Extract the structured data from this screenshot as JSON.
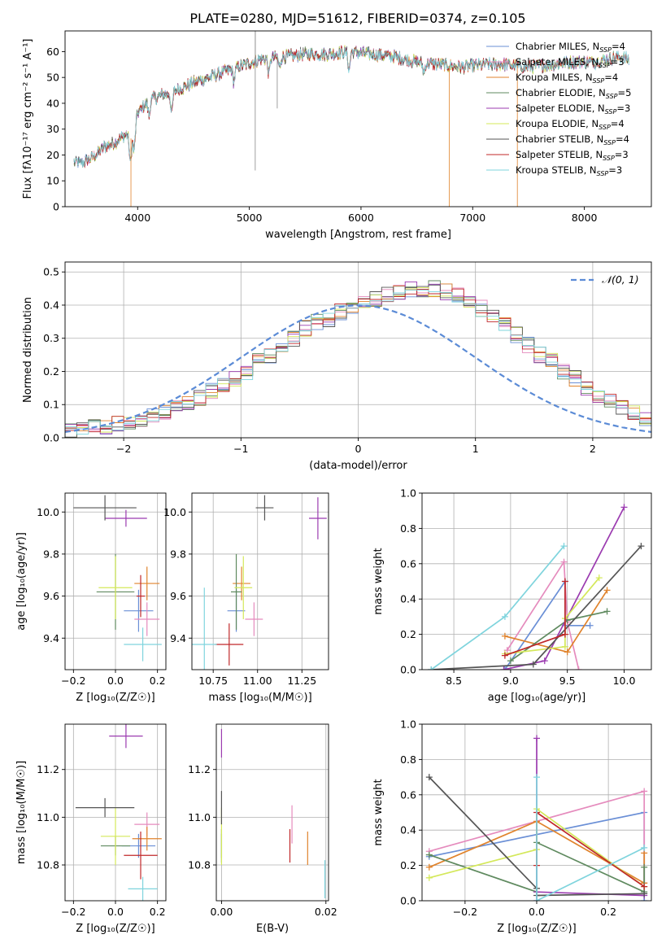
{
  "figure_title": "PLATE=0280, MJD=51612, FIBERID=0374, z=0.105",
  "colors": {
    "Chabrier MILES": "#6a8fd6",
    "Salpeter MILES": "#e58bbd",
    "Kroupa MILES": "#e0832c",
    "Chabrier ELODIE": "#5f8a5f",
    "Salpeter ELODIE": "#9b3bb0",
    "Kroupa ELODIE": "#d4e85a",
    "Chabrier STELIB": "#555555",
    "Salpeter STELIB": "#c0282a",
    "Kroupa STELIB": "#7fd4dd",
    "gauss": "#5b8bd6"
  },
  "chart_data": [
    {
      "id": "spectrum",
      "type": "line",
      "title": "PLATE=0280, MJD=51612, FIBERID=0374, z=0.105",
      "xlabel": "wavelength [Angstrom, rest frame]",
      "ylabel": "Flux [fλ10⁻¹⁷ erg cm⁻² s⁻¹ A⁻¹]",
      "xlim": [
        3350,
        8600
      ],
      "ylim": [
        0,
        68
      ],
      "xticks": [
        4000,
        5000,
        6000,
        7000,
        8000
      ],
      "yticks": [
        0,
        10,
        20,
        30,
        40,
        50,
        60
      ],
      "grid": false,
      "legend_position": "top-right",
      "legend": [
        "Chabrier MILES, N_SSP=4",
        "Salpeter MILES, N_SSP=3",
        "Kroupa MILES, N_SSP=4",
        "Chabrier ELODIE, N_SSP=5",
        "Salpeter ELODIE, N_SSP=3",
        "Kroupa ELODIE, N_SSP=4",
        "Chabrier STELIB, N_SSP=4",
        "Salpeter STELIB, N_SSP=3",
        "Kroupa STELIB, N_SSP=3"
      ],
      "legend_text": [
        [
          "Chabrier MILES, N",
          "SSP",
          "=4"
        ],
        [
          "Salpeter MILES, N",
          "SSP",
          "=3"
        ],
        [
          "Kroupa MILES, N",
          "SSP",
          "=4"
        ],
        [
          "Chabrier ELODIE, N",
          "SSP",
          "=5"
        ],
        [
          "Salpeter ELODIE, N",
          "SSP",
          "=3"
        ],
        [
          "Kroupa ELODIE, N",
          "SSP",
          "=4"
        ],
        [
          "Chabrier STELIB, N",
          "SSP",
          "=4"
        ],
        [
          "Salpeter STELIB, N",
          "SSP",
          "=3"
        ],
        [
          "Kroupa STELIB, N",
          "SSP",
          "=3"
        ]
      ],
      "continuum": {
        "x": [
          3430,
          3500,
          3600,
          3700,
          3800,
          3900,
          3950,
          4000,
          4100,
          4200,
          4300,
          4400,
          4500,
          4700,
          4900,
          5100,
          5300,
          5500,
          5700,
          5900,
          6100,
          6300,
          6500,
          6700,
          6900,
          7100,
          7300,
          7500,
          7700,
          7900,
          8100,
          8300,
          8400
        ],
        "y": [
          17,
          17,
          19,
          23,
          25,
          28,
          26,
          36,
          41,
          43,
          44,
          46,
          48,
          51,
          54,
          57,
          58,
          59,
          59,
          60,
          59,
          58,
          56,
          55,
          54,
          55,
          55,
          54,
          55,
          56,
          56,
          58,
          57
        ]
      },
      "x_start_by_series": [
        3430,
        3430,
        3500,
        3430,
        3430,
        3430,
        3430,
        3500,
        3430
      ],
      "absorption_lines": [
        {
          "x": 3934,
          "depth": 10
        },
        {
          "x": 3969,
          "depth": 8
        },
        {
          "x": 4102,
          "depth": 6
        },
        {
          "x": 4305,
          "depth": 8
        },
        {
          "x": 4861,
          "depth": 5
        },
        {
          "x": 5175,
          "depth": 6
        },
        {
          "x": 5270,
          "depth": 4
        },
        {
          "x": 5893,
          "depth": 7
        },
        {
          "x": 6563,
          "depth": 4
        }
      ],
      "glitches": [
        {
          "x": 5053,
          "value": 14
        },
        {
          "x": 5250,
          "value": 38
        },
        {
          "x": 6790,
          "value": 0
        },
        {
          "x": 7400,
          "value": 0
        },
        {
          "x": 3940,
          "value": 0
        }
      ]
    },
    {
      "id": "residuals",
      "type": "line",
      "xlabel": "(data-model)/error",
      "ylabel": "Normed distribution",
      "xlim": [
        -2.5,
        2.5
      ],
      "ylim": [
        0,
        0.53
      ],
      "xticks": [
        -2,
        -1,
        0,
        1,
        2
      ],
      "yticks": [
        0.0,
        0.1,
        0.2,
        0.3,
        0.4,
        0.5
      ],
      "grid": true,
      "legend_position": "top-right",
      "legend": [
        "𝒩(0, 1)"
      ],
      "bin_width": 0.1,
      "bins_start": -2.5,
      "base_histogram": [
        0.02,
        0.025,
        0.03,
        0.035,
        0.04,
        0.05,
        0.055,
        0.065,
        0.075,
        0.09,
        0.1,
        0.12,
        0.14,
        0.16,
        0.18,
        0.2,
        0.23,
        0.25,
        0.28,
        0.3,
        0.33,
        0.35,
        0.36,
        0.38,
        0.4,
        0.41,
        0.42,
        0.43,
        0.44,
        0.45,
        0.45,
        0.45,
        0.44,
        0.43,
        0.41,
        0.39,
        0.36,
        0.34,
        0.31,
        0.28,
        0.25,
        0.23,
        0.2,
        0.18,
        0.15,
        0.13,
        0.11,
        0.09,
        0.075,
        0.06
      ],
      "gaussian": {
        "mu": 0,
        "sigma": 1
      }
    },
    {
      "id": "Z_age",
      "type": "scatter",
      "xlabel": "Z [log₁₀(Z/Z☉)]",
      "ylabel": "age  [log₁₀(age/yr)]",
      "xlim": [
        -0.24,
        0.24
      ],
      "ylim": [
        9.25,
        10.09
      ],
      "xticks": [
        -0.2,
        0.0,
        0.2
      ],
      "yticks": [
        9.4,
        9.6,
        9.8,
        10.0
      ],
      "grid": true,
      "points": [
        {
          "series": "Chabrier MILES",
          "x": 0.11,
          "y": 9.53,
          "xerr": 0.07,
          "yerr": 0.1
        },
        {
          "series": "Salpeter MILES",
          "x": 0.15,
          "y": 9.49,
          "xerr": 0.06,
          "yerr": 0.08
        },
        {
          "series": "Kroupa MILES",
          "x": 0.15,
          "y": 9.66,
          "xerr": 0.06,
          "yerr": 0.08
        },
        {
          "series": "Chabrier ELODIE",
          "x": 0.0,
          "y": 9.62,
          "xerr": 0.09,
          "yerr": 0.18
        },
        {
          "series": "Salpeter ELODIE",
          "x": 0.05,
          "y": 9.97,
          "xerr": 0.1,
          "yerr": 0.04
        },
        {
          "series": "Kroupa ELODIE",
          "x": 0.0,
          "y": 9.64,
          "xerr": 0.08,
          "yerr": 0.15
        },
        {
          "series": "Chabrier STELIB",
          "x": -0.05,
          "y": 10.02,
          "xerr": 0.15,
          "yerr": 0.06
        },
        {
          "series": "Salpeter STELIB",
          "x": 0.12,
          "y": 9.6,
          "xerr": 0.02,
          "yerr": 0.1
        },
        {
          "series": "Kroupa STELIB",
          "x": 0.13,
          "y": 9.37,
          "xerr": 0.09,
          "yerr": 0.08
        }
      ]
    },
    {
      "id": "mass_age",
      "type": "scatter",
      "xlabel": "mass [log₁₀(M/M☉)]",
      "ylabel": "",
      "xlim": [
        10.63,
        11.4
      ],
      "ylim": [
        9.25,
        10.09
      ],
      "xticks": [
        10.75,
        11.0,
        11.25
      ],
      "yticks": [
        9.4,
        9.6,
        9.8,
        10.0
      ],
      "grid": true,
      "points": [
        {
          "series": "Chabrier MILES",
          "x": 10.88,
          "y": 9.53,
          "xerr": 0.05,
          "yerr": 0.1
        },
        {
          "series": "Salpeter MILES",
          "x": 10.98,
          "y": 9.49,
          "xerr": 0.05,
          "yerr": 0.08
        },
        {
          "series": "Kroupa MILES",
          "x": 10.91,
          "y": 9.66,
          "xerr": 0.05,
          "yerr": 0.08
        },
        {
          "series": "Chabrier ELODIE",
          "x": 10.88,
          "y": 9.62,
          "xerr": 0.03,
          "yerr": 0.18
        },
        {
          "series": "Salpeter ELODIE",
          "x": 11.34,
          "y": 9.97,
          "xerr": 0.05,
          "yerr": 0.1
        },
        {
          "series": "Kroupa ELODIE",
          "x": 10.92,
          "y": 9.64,
          "xerr": 0.05,
          "yerr": 0.15
        },
        {
          "series": "Chabrier STELIB",
          "x": 11.04,
          "y": 10.02,
          "xerr": 0.05,
          "yerr": 0.06
        },
        {
          "series": "Salpeter STELIB",
          "x": 10.84,
          "y": 9.37,
          "xerr": 0.08,
          "yerr": 0.1
        },
        {
          "series": "Kroupa STELIB",
          "x": 10.7,
          "y": 9.37,
          "xerr": 0.07,
          "yerr": 0.27
        }
      ]
    },
    {
      "id": "age_weight",
      "type": "line",
      "xlabel": "age  [log₁₀(age/yr)]",
      "ylabel": "mass weight",
      "xlim": [
        8.22,
        10.24
      ],
      "ylim": [
        0,
        1.0
      ],
      "xticks": [
        8.5,
        9.0,
        9.5,
        10.0
      ],
      "yticks": [
        0.0,
        0.2,
        0.4,
        0.6,
        0.8,
        1.0
      ],
      "grid": true,
      "series": [
        {
          "name": "Chabrier MILES",
          "x": [
            8.95,
            9.48,
            9.48,
            9.7
          ],
          "y": [
            0.0,
            0.5,
            0.25,
            0.25
          ]
        },
        {
          "name": "Salpeter MILES",
          "x": [
            8.97,
            9.47,
            9.5,
            9.6
          ],
          "y": [
            0.11,
            0.61,
            0.27,
            0.0
          ]
        },
        {
          "name": "Kroupa MILES",
          "x": [
            8.95,
            9.5,
            9.85
          ],
          "y": [
            0.19,
            0.1,
            0.45
          ]
        },
        {
          "name": "Chabrier ELODIE",
          "x": [
            9.0,
            9.5,
            9.85
          ],
          "y": [
            0.05,
            0.28,
            0.33
          ]
        },
        {
          "name": "Salpeter ELODIE",
          "x": [
            8.94,
            9.3,
            10.0
          ],
          "y": [
            0.0,
            0.05,
            0.92
          ]
        },
        {
          "name": "Kroupa ELODIE",
          "x": [
            8.95,
            9.48,
            9.48,
            9.78
          ],
          "y": [
            0.09,
            0.13,
            0.29,
            0.52
          ]
        },
        {
          "name": "Chabrier STELIB",
          "x": [
            8.3,
            9.2,
            10.15
          ],
          "y": [
            0.0,
            0.03,
            0.7
          ]
        },
        {
          "name": "Salpeter STELIB",
          "x": [
            8.95,
            9.48,
            9.48
          ],
          "y": [
            0.08,
            0.2,
            0.5
          ]
        },
        {
          "name": "Kroupa STELIB",
          "x": [
            8.3,
            8.95,
            9.47
          ],
          "y": [
            0.0,
            0.3,
            0.7
          ]
        }
      ]
    },
    {
      "id": "Z_mass",
      "type": "scatter",
      "xlabel": "Z [log₁₀(Z/Z☉)]",
      "ylabel": "mass [log₁₀(M/M☉)]",
      "xlim": [
        -0.24,
        0.24
      ],
      "ylim": [
        10.65,
        11.39
      ],
      "xticks": [
        -0.2,
        0.0,
        0.2
      ],
      "yticks": [
        10.8,
        11.0,
        11.2
      ],
      "grid": true,
      "points": [
        {
          "series": "Chabrier MILES",
          "x": 0.11,
          "y": 10.88,
          "xerr": 0.08,
          "yerr": 0.05
        },
        {
          "series": "Salpeter MILES",
          "x": 0.15,
          "y": 10.97,
          "xerr": 0.06,
          "yerr": 0.05
        },
        {
          "series": "Kroupa MILES",
          "x": 0.15,
          "y": 10.91,
          "xerr": 0.07,
          "yerr": 0.05
        },
        {
          "series": "Chabrier ELODIE",
          "x": 0.0,
          "y": 10.88,
          "xerr": 0.07,
          "yerr": 0.04
        },
        {
          "series": "Salpeter ELODIE",
          "x": 0.05,
          "y": 11.34,
          "xerr": 0.08,
          "yerr": 0.05
        },
        {
          "series": "Kroupa ELODIE",
          "x": 0.0,
          "y": 10.92,
          "xerr": 0.07,
          "yerr": 0.12
        },
        {
          "series": "Chabrier STELIB",
          "x": -0.05,
          "y": 11.04,
          "xerr": 0.14,
          "yerr": 0.04
        },
        {
          "series": "Salpeter STELIB",
          "x": 0.12,
          "y": 10.84,
          "xerr": 0.08,
          "yerr": 0.1
        },
        {
          "series": "Kroupa STELIB",
          "x": 0.13,
          "y": 10.7,
          "xerr": 0.07,
          "yerr": 0.05
        }
      ]
    },
    {
      "id": "ebv_mass",
      "type": "scatter",
      "xlabel": "E(B-V)",
      "ylabel": "",
      "xlim": [
        -0.001,
        0.0205
      ],
      "ylim": [
        10.65,
        11.39
      ],
      "xticks": [
        0.0,
        0.02
      ],
      "yticks": [
        10.8,
        11.0,
        11.2
      ],
      "grid": true,
      "points": [
        {
          "series": "Chabrier MILES",
          "x": 0.0,
          "y": 10.88,
          "xerr": 0,
          "yerr": 0.05
        },
        {
          "series": "Salpeter MILES",
          "x": 0.0135,
          "y": 10.97,
          "xerr": 0,
          "yerr": 0.08
        },
        {
          "series": "Kroupa MILES",
          "x": 0.0165,
          "y": 10.87,
          "xerr": 0,
          "yerr": 0.07
        },
        {
          "series": "Chabrier ELODIE",
          "x": 0.0,
          "y": 10.88,
          "xerr": 0,
          "yerr": 0.07
        },
        {
          "series": "Salpeter ELODIE",
          "x": 0.0,
          "y": 11.31,
          "xerr": 0,
          "yerr": 0.06
        },
        {
          "series": "Kroupa ELODIE",
          "x": 0.0,
          "y": 10.92,
          "xerr": 0,
          "yerr": 0.12
        },
        {
          "series": "Chabrier STELIB",
          "x": 0.0,
          "y": 11.04,
          "xerr": 0,
          "yerr": 0.07
        },
        {
          "series": "Salpeter STELIB",
          "x": 0.0131,
          "y": 10.88,
          "xerr": 0,
          "yerr": 0.07
        },
        {
          "series": "Kroupa STELIB",
          "x": 0.0198,
          "y": 10.74,
          "xerr": 0,
          "yerr": 0.08
        }
      ]
    },
    {
      "id": "Z_weight",
      "type": "line",
      "xlabel": "Z [log₁₀(Z/Z☉)]",
      "ylabel": "mass weight",
      "xlim": [
        -0.32,
        0.32
      ],
      "ylim": [
        0,
        1.0
      ],
      "xticks": [
        -0.2,
        0.0,
        0.2
      ],
      "yticks": [
        0.0,
        0.2,
        0.4,
        0.6,
        0.8,
        1.0
      ],
      "grid": true,
      "series": [
        {
          "name": "Chabrier MILES",
          "x": [
            -0.3,
            0.3,
            0.3
          ],
          "y": [
            0.25,
            0.5,
            0.0
          ]
        },
        {
          "name": "Salpeter MILES",
          "x": [
            -0.3,
            0.3,
            0.3
          ],
          "y": [
            0.28,
            0.62,
            0.1
          ]
        },
        {
          "name": "Kroupa MILES",
          "x": [
            -0.3,
            0.0,
            0.3,
            0.3
          ],
          "y": [
            0.19,
            0.45,
            0.1,
            0.27
          ]
        },
        {
          "name": "Chabrier ELODIE",
          "x": [
            -0.3,
            0.0,
            0.0,
            0.3,
            0.3
          ],
          "y": [
            0.26,
            0.05,
            0.33,
            0.05,
            0.19
          ]
        },
        {
          "name": "Salpeter ELODIE",
          "x": [
            0.0,
            0.0,
            0.0,
            0.3
          ],
          "y": [
            0.92,
            0.0,
            0.05,
            0.03
          ]
        },
        {
          "name": "Kroupa ELODIE",
          "x": [
            -0.3,
            0.0,
            0.0,
            0.3
          ],
          "y": [
            0.13,
            0.29,
            0.52,
            0.08
          ]
        },
        {
          "name": "Chabrier STELIB",
          "x": [
            -0.3,
            0.0,
            0.0,
            0.3
          ],
          "y": [
            0.7,
            0.07,
            0.03,
            0.04
          ]
        },
        {
          "name": "Salpeter STELIB",
          "x": [
            0.0,
            0.0,
            0.3
          ],
          "y": [
            0.2,
            0.5,
            0.08
          ]
        },
        {
          "name": "Kroupa STELIB",
          "x": [
            0.0,
            0.0,
            0.3
          ],
          "y": [
            0.7,
            0.0,
            0.3
          ]
        }
      ]
    }
  ]
}
